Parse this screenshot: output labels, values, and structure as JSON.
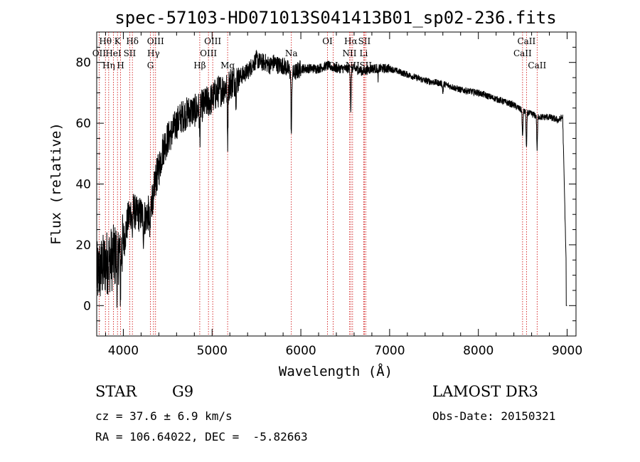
{
  "chart_data": {
    "type": "line",
    "title": "spec-57103-HD071013S041413B01_sp02-236.fits",
    "xlabel": "Wavelength (Å)",
    "ylabel": "Flux (relative)",
    "xlim": [
      3700,
      9100
    ],
    "ylim": [
      -10,
      90
    ],
    "xticks": [
      4000,
      5000,
      6000,
      7000,
      8000,
      9000
    ],
    "yticks": [
      0,
      20,
      40,
      60,
      80
    ],
    "grid": false,
    "series": [
      {
        "name": "flux",
        "x": [
          3700,
          3750,
          3800,
          3850,
          3900,
          3950,
          4000,
          4050,
          4100,
          4150,
          4200,
          4250,
          4300,
          4350,
          4400,
          4450,
          4500,
          4550,
          4600,
          4650,
          4700,
          4750,
          4800,
          4850,
          4900,
          4950,
          5000,
          5050,
          5100,
          5150,
          5200,
          5250,
          5300,
          5350,
          5400,
          5450,
          5500,
          5550,
          5600,
          5650,
          5700,
          5750,
          5800,
          5850,
          5900,
          5950,
          6000,
          6100,
          6200,
          6300,
          6400,
          6500,
          6550,
          6600,
          6700,
          6800,
          6900,
          7000,
          7200,
          7400,
          7600,
          7800,
          8000,
          8200,
          8400,
          8500,
          8600,
          8700,
          8800,
          8900,
          8950,
          9000
        ],
        "y": [
          10,
          12,
          14,
          15,
          16,
          18,
          20,
          28,
          32,
          30,
          30,
          29,
          31,
          40,
          45,
          52,
          55,
          57,
          60,
          62,
          63,
          64,
          64,
          65,
          66,
          67,
          68,
          70,
          71,
          72,
          73,
          74,
          75,
          76,
          77,
          79,
          81,
          80,
          80,
          79,
          80,
          79,
          79,
          78,
          76,
          77,
          78,
          78,
          78,
          79,
          78,
          78,
          78,
          78,
          77,
          78,
          78,
          78,
          76,
          74,
          73,
          71,
          70,
          68,
          66,
          64,
          63,
          62,
          62,
          61,
          62,
          0
        ]
      }
    ],
    "absorption_dips": [
      {
        "wavelength": 3933,
        "depth": 14
      },
      {
        "wavelength": 3968,
        "depth": 12
      },
      {
        "wavelength": 4101,
        "depth": 8
      },
      {
        "wavelength": 4227,
        "depth": 6
      },
      {
        "wavelength": 4300,
        "depth": 9
      },
      {
        "wavelength": 4340,
        "depth": 8
      },
      {
        "wavelength": 4861,
        "depth": 10
      },
      {
        "wavelength": 5175,
        "depth": 18
      },
      {
        "wavelength": 5270,
        "depth": 5
      },
      {
        "wavelength": 5893,
        "depth": 20
      },
      {
        "wavelength": 6563,
        "depth": 14
      },
      {
        "wavelength": 6870,
        "depth": 3
      },
      {
        "wavelength": 7600,
        "depth": 3
      },
      {
        "wavelength": 8498,
        "depth": 9
      },
      {
        "wavelength": 8542,
        "depth": 12
      },
      {
        "wavelength": 8662,
        "depth": 11
      }
    ],
    "line_markers": [
      {
        "label": "Hθ",
        "wavelength": 3798,
        "row": 1
      },
      {
        "label": "OII",
        "wavelength": 3727,
        "row": 2
      },
      {
        "label": "Hη",
        "wavelength": 3835,
        "row": 3
      },
      {
        "label": "K",
        "wavelength": 3934,
        "row": 1
      },
      {
        "label": "HeI",
        "wavelength": 3889,
        "row": 2
      },
      {
        "label": "H",
        "wavelength": 3969,
        "row": 3
      },
      {
        "label": "SII",
        "wavelength": 4072,
        "row": 2
      },
      {
        "label": "Hδ",
        "wavelength": 4102,
        "row": 1
      },
      {
        "label": "OIII",
        "wavelength": 4363,
        "row": 1
      },
      {
        "label": "Hγ",
        "wavelength": 4340,
        "row": 2
      },
      {
        "label": "G",
        "wavelength": 4305,
        "row": 3
      },
      {
        "label": "Hβ",
        "wavelength": 4861,
        "row": 3
      },
      {
        "label": "OIII",
        "wavelength": 5007,
        "row": 1
      },
      {
        "label": "OIII",
        "wavelength": 4959,
        "row": 2
      },
      {
        "label": "Mg",
        "wavelength": 5175,
        "row": 3
      },
      {
        "label": "Na",
        "wavelength": 5893,
        "row": 2
      },
      {
        "label": "OI",
        "wavelength": 6300,
        "row": 1
      },
      {
        "label": "OI",
        "wavelength": 6364,
        "row": 3
      },
      {
        "label": "Hα",
        "wavelength": 6563,
        "row": 1
      },
      {
        "label": "NII",
        "wavelength": 6548,
        "row": 2
      },
      {
        "label": "NII",
        "wavelength": 6583,
        "row": 3
      },
      {
        "label": "SII",
        "wavelength": 6716,
        "row": 1
      },
      {
        "label": "Li",
        "wavelength": 6708,
        "row": 2
      },
      {
        "label": "SII",
        "wavelength": 6731,
        "row": 3
      },
      {
        "label": "CaII",
        "wavelength": 8542,
        "row": 1
      },
      {
        "label": "CaII",
        "wavelength": 8498,
        "row": 2
      },
      {
        "label": "CaII",
        "wavelength": 8662,
        "row": 3
      }
    ]
  },
  "info": {
    "class": "STAR",
    "subclass": "G9",
    "survey": "LAMOST DR3",
    "cz": "cz = 37.6 ± 6.9 km/s",
    "obs_date": "Obs-Date: 20150321",
    "coords": "RA = 106.64022, DEC =  -5.82663"
  },
  "colors": {
    "spectrum": "#000000",
    "marker": "#cc0000",
    "axis": "#000000"
  }
}
